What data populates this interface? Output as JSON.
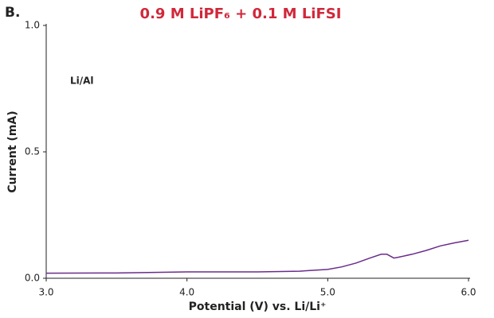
{
  "chart_data": {
    "type": "line",
    "panel_label": "B.",
    "title": "0.9 M LiPF₆ + 0.1 M LiFSI",
    "annotation": "Li/Al",
    "x_label": "Potential (V) vs. Li/Li⁺",
    "y_label": "Current (mA)",
    "xlim": [
      3.0,
      6.0
    ],
    "xticks": [
      {
        "value": 3,
        "label": "3.0"
      },
      {
        "value": 4,
        "label": "4.0"
      },
      {
        "value": 5,
        "label": "5.0"
      },
      {
        "value": 6,
        "label": "6.0"
      }
    ],
    "ylim": [
      0,
      1.0
    ],
    "yticks": [
      {
        "value": 0,
        "label": "0.0"
      },
      {
        "value": 0.5,
        "label": "0.5"
      },
      {
        "value": 1,
        "label": "1.0"
      }
    ],
    "x": [
      3.0,
      3.5,
      4.0,
      4.5,
      4.8,
      5.0,
      5.1,
      5.2,
      5.3,
      5.38,
      5.42,
      5.47,
      5.5,
      5.6,
      5.7,
      5.8,
      5.9,
      6.0
    ],
    "series": [
      {
        "color": "#6a2c8a",
        "values": [
          0.02,
          0.021,
          0.025,
          0.025,
          0.028,
          0.035,
          0.045,
          0.06,
          0.08,
          0.095,
          0.095,
          0.08,
          0.083,
          0.095,
          0.11,
          0.128,
          0.14,
          0.15
        ]
      }
    ]
  }
}
